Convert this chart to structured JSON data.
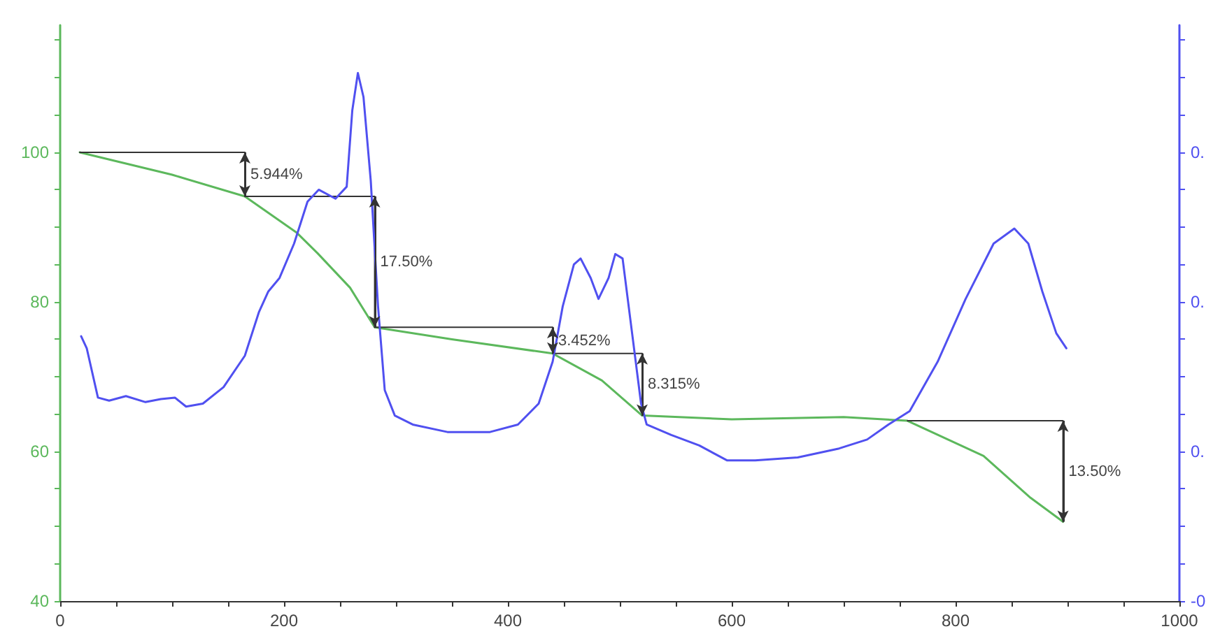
{
  "chart_data": {
    "type": "line",
    "xlim": [
      0,
      1000
    ],
    "xticks": [
      0,
      {
        "value": 50,
        "label": null
      },
      {
        "value": 100,
        "label": null
      },
      {
        "value": 150,
        "label": null
      },
      200,
      {
        "value": 250,
        "label": null
      },
      {
        "value": 300,
        "label": null
      },
      {
        "value": 350,
        "label": null
      },
      400,
      {
        "value": 450,
        "label": null
      },
      {
        "value": 500,
        "label": null
      },
      {
        "value": 550,
        "label": null
      },
      600,
      {
        "value": 650,
        "label": null
      },
      {
        "value": 700,
        "label": null
      },
      {
        "value": 750,
        "label": null
      },
      800,
      {
        "value": 850,
        "label": null
      },
      {
        "value": 900,
        "label": null
      },
      {
        "value": 950,
        "label": null
      },
      1000
    ],
    "ylim": [
      40,
      117
    ],
    "yticks": [
      40,
      {
        "value": 45,
        "label": null
      },
      {
        "value": 50,
        "label": null
      },
      {
        "value": 55,
        "label": null
      },
      60,
      {
        "value": 65,
        "label": null
      },
      {
        "value": 70,
        "label": null
      },
      {
        "value": 75,
        "label": null
      },
      80,
      {
        "value": 85,
        "label": null
      },
      {
        "value": 90,
        "label": null
      },
      {
        "value": 95,
        "label": null
      },
      100,
      {
        "value": 105,
        "label": null
      },
      {
        "value": 110,
        "label": null
      },
      {
        "value": 115,
        "label": null
      }
    ],
    "y2lim": [
      -0.1,
      0.285
    ],
    "y2ticks": [
      {
        "value": -0.1,
        "label": "-0"
      },
      {
        "value": -0.075,
        "label": null
      },
      {
        "value": -0.05,
        "label": null
      },
      {
        "value": -0.025,
        "label": null
      },
      {
        "value": 0,
        "label": "0."
      },
      {
        "value": 0.025,
        "label": null
      },
      {
        "value": 0.05,
        "label": null
      },
      {
        "value": 0.075,
        "label": null
      },
      {
        "value": 0.1,
        "label": "0."
      },
      {
        "value": 0.125,
        "label": null
      },
      {
        "value": 0.15,
        "label": null
      },
      {
        "value": 0.175,
        "label": null
      },
      {
        "value": 0.2,
        "label": "0."
      },
      {
        "value": 0.225,
        "label": null
      },
      {
        "value": 0.25,
        "label": null
      },
      {
        "value": 0.275,
        "label": null
      }
    ],
    "grid": false,
    "marker": "none",
    "line_style": "solid",
    "series": [
      {
        "color": "#5cb85c",
        "x": [
          17.5,
          100,
          165,
          211,
          230,
          259,
          281,
          350,
          440,
          484,
          520,
          600,
          700,
          757,
          825,
          867,
          896
        ],
        "values": [
          100,
          97,
          94.1,
          89.3,
          86.5,
          81.9,
          76.6,
          75,
          73.1,
          69.5,
          64.8,
          64.3,
          64.6,
          64.1,
          59.4,
          53.8,
          50.6
        ]
      },
      {
        "color": "#333333",
        "x": [
          17.5,
          165,
          165
        ],
        "values": [
          100,
          100,
          94.1
        ]
      },
      {
        "color": "#333333",
        "x": [
          165,
          281,
          281
        ],
        "values": [
          94.1,
          94.1,
          76.6
        ]
      },
      {
        "color": "#333333",
        "x": [
          281,
          440,
          440
        ],
        "values": [
          76.6,
          76.6,
          73.1
        ]
      },
      {
        "color": "#333333",
        "x": [
          440,
          520,
          520
        ],
        "values": [
          73.1,
          73.1,
          64.8
        ]
      },
      {
        "color": "#333333",
        "x": [
          757,
          896,
          896
        ],
        "values": [
          64.1,
          64.1,
          50.6
        ]
      },
      {
        "color": "#5050f0",
        "axis": "y2",
        "x": [
          18.75,
          23.75,
          33.75,
          43.75,
          58.75,
          76.25,
          90,
          102.5,
          112.5,
          127.5,
          146,
          165,
          177.5,
          186,
          196,
          209,
          221,
          231,
          246,
          256,
          261,
          266,
          271,
          277.5,
          284,
          290,
          299,
          315,
          346,
          384,
          409,
          427.5,
          440,
          449,
          459,
          465,
          474,
          481,
          490,
          496,
          502.5,
          511,
          519,
          524,
          546,
          571,
          596,
          621,
          659,
          696,
          721,
          740,
          759,
          784,
          809,
          834,
          852.5,
          865,
          877.5,
          890,
          899
        ],
        "values": [
          0.077,
          0.069,
          0.036,
          0.034,
          0.037,
          0.033,
          0.035,
          0.036,
          0.03,
          0.032,
          0.043,
          0.064,
          0.093,
          0.107,
          0.116,
          0.139,
          0.167,
          0.175,
          0.169,
          0.177,
          0.228,
          0.253,
          0.237,
          0.181,
          0.097,
          0.041,
          0.024,
          0.018,
          0.013,
          0.013,
          0.018,
          0.032,
          0.06,
          0.097,
          0.125,
          0.129,
          0.116,
          0.102,
          0.116,
          0.132,
          0.129,
          0.079,
          0.032,
          0.018,
          0.011,
          0.004,
          -0.006,
          -0.006,
          -0.004,
          0.002,
          0.008,
          0.018,
          0.027,
          0.06,
          0.102,
          0.139,
          0.149,
          0.139,
          0.107,
          0.079,
          0.069
        ]
      }
    ],
    "annotations": [
      {
        "text": "5.944%",
        "x": 165,
        "y": 97
      },
      {
        "text": "17.50%",
        "x": 281,
        "y": 85.3
      },
      {
        "text": "3.452%",
        "x": 440,
        "y": 74.8
      },
      {
        "text": "8.315%",
        "x": 520,
        "y": 69
      },
      {
        "text": "13.50%",
        "x": 896,
        "y": 57.3
      }
    ]
  }
}
